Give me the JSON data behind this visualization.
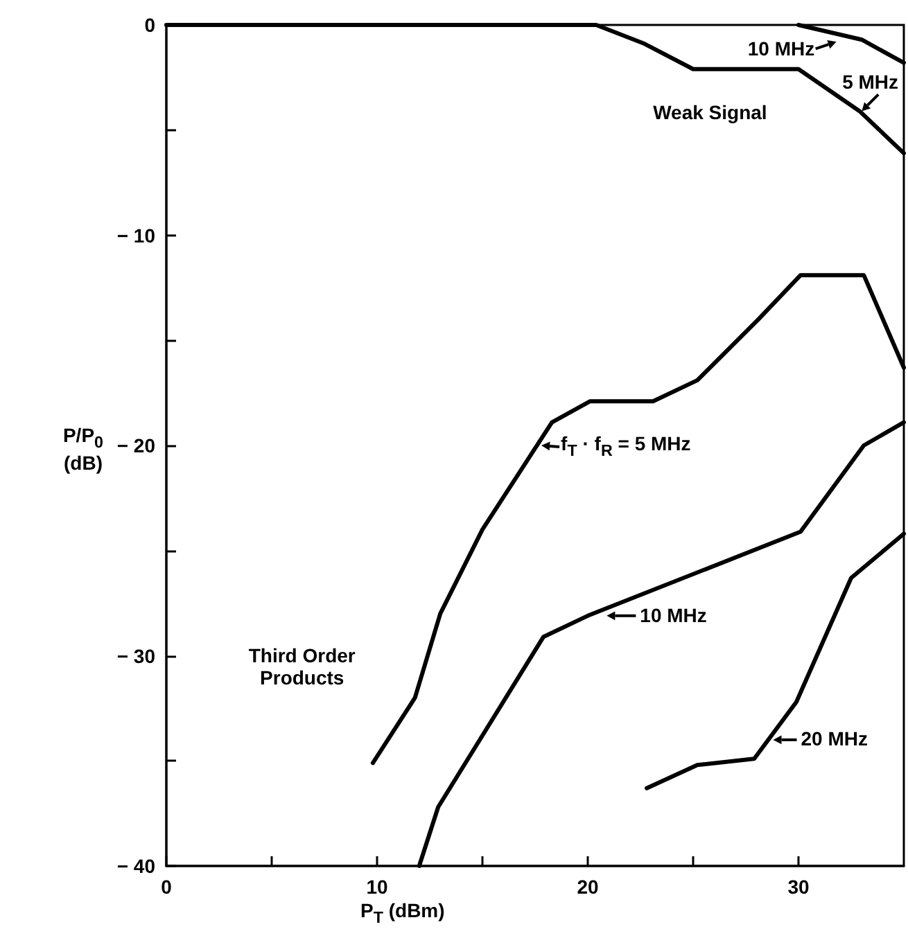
{
  "chart_data": {
    "type": "line",
    "xlabel": "P$_{T}$ (dBm)",
    "ylabel": "P/P$_{0}$ (dB)",
    "xlim": [
      0,
      35
    ],
    "ylim": [
      -40,
      0
    ],
    "xticks": [
      0,
      {
        "value": 5,
        "label": null
      },
      10,
      {
        "value": 15,
        "label": null
      },
      20,
      {
        "value": 25,
        "label": null
      },
      30
    ],
    "yticks": [
      -40,
      {
        "value": -35,
        "label": null
      },
      -30,
      {
        "value": -25,
        "label": null
      },
      -20,
      {
        "value": -15,
        "label": null
      },
      -10,
      {
        "value": -5,
        "label": null
      },
      0
    ],
    "grid": false,
    "marker": "none",
    "line_style": "solid",
    "series": [
      {
        "color": "#000000",
        "x": [
          0,
          20.4,
          22.7,
          25,
          30,
          32.9,
          35
        ],
        "values": [
          0,
          0,
          -0.9,
          -2.1,
          -2.1,
          -4.1,
          -6.1
        ]
      },
      {
        "color": "#000000",
        "x": [
          30,
          33,
          35
        ],
        "values": [
          0,
          -0.7,
          -1.8
        ]
      },
      {
        "color": "#000000",
        "x": [
          9.8,
          11.8,
          13,
          15,
          18.3,
          20.1,
          23.1,
          25.2,
          28.1,
          30.1,
          33.1,
          35
        ],
        "values": [
          -35.1,
          -32,
          -28,
          -24,
          -18.9,
          -17.9,
          -17.9,
          -16.9,
          -14,
          -11.9,
          -11.9,
          -16.3
        ]
      },
      {
        "color": "#000000",
        "x": [
          12,
          12.9,
          17.9,
          20,
          30.1,
          33.1,
          35
        ],
        "values": [
          -40,
          -37.2,
          -29.1,
          -28.1,
          -24.1,
          -20,
          -18.9
        ]
      },
      {
        "color": "#000000",
        "x": [
          22.8,
          25.2,
          27.9,
          29.9,
          32.5,
          35
        ],
        "values": [
          -36.3,
          -35.2,
          -34.9,
          -32.2,
          -26.3,
          -24.2
        ]
      }
    ],
    "annotations": [
      {
        "text": "10 MHz",
        "x": 31.8,
        "y": -0.8
      },
      {
        "text": "5 MHz",
        "x": 33,
        "y": -4.1
      },
      "Weak Signal",
      {
        "text": "f$_{T}$ · f$_{R}$ = 5 MHz",
        "x": 17.8,
        "y": -20
      },
      {
        "text": "10 MHz",
        "x": 20.9,
        "y": -28.1
      },
      "Third Order Products",
      {
        "text": "20 MHz",
        "x": 28.8,
        "y": -34
      }
    ]
  }
}
